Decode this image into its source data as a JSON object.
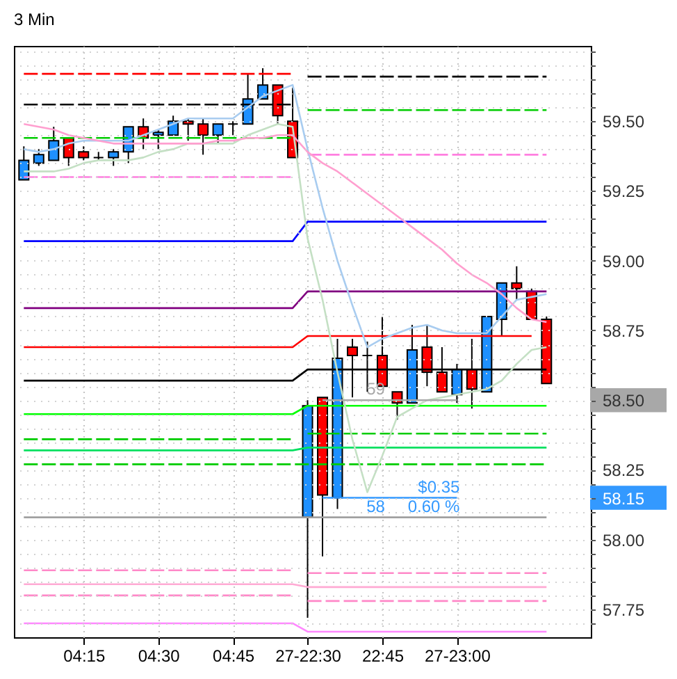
{
  "chart_data": {
    "type": "candlestick",
    "title": "3 Min",
    "categories": [
      null,
      null,
      null,
      null,
      "04:15",
      null,
      null,
      null,
      null,
      "04:30",
      null,
      null,
      null,
      null,
      "04:45",
      null,
      null,
      null,
      null,
      "27-22:30",
      null,
      null,
      null,
      null,
      "22:45",
      null,
      null,
      null,
      null,
      "27-23:00",
      null,
      null,
      null,
      null,
      null,
      null
    ],
    "ohlc": [
      [
        59.29,
        59.41,
        59.29,
        59.36
      ],
      [
        59.35,
        59.4,
        59.34,
        59.38
      ],
      [
        59.36,
        59.48,
        59.36,
        59.43
      ],
      [
        59.44,
        59.44,
        59.34,
        59.37
      ],
      [
        59.39,
        59.41,
        59.36,
        59.37
      ],
      [
        59.37,
        59.39,
        59.36,
        59.37
      ],
      [
        59.37,
        59.4,
        59.34,
        59.39
      ],
      [
        59.39,
        59.48,
        59.35,
        59.48
      ],
      [
        59.48,
        59.51,
        59.4,
        59.44
      ],
      [
        59.45,
        59.47,
        59.4,
        59.46
      ],
      [
        59.45,
        59.52,
        59.45,
        59.5
      ],
      [
        59.5,
        59.51,
        59.43,
        59.49
      ],
      [
        59.49,
        59.51,
        59.38,
        59.45
      ],
      [
        59.45,
        59.49,
        59.42,
        59.49
      ],
      [
        59.49,
        59.5,
        59.45,
        59.49
      ],
      [
        59.49,
        59.67,
        59.49,
        59.58
      ],
      [
        59.58,
        59.69,
        59.58,
        59.63
      ],
      [
        59.63,
        59.63,
        59.49,
        59.52
      ],
      [
        59.5,
        59.62,
        59.37,
        59.37
      ],
      [
        58.08,
        58.5,
        57.72,
        58.48
      ],
      [
        58.51,
        58.51,
        57.94,
        58.16
      ],
      [
        58.15,
        58.72,
        58.11,
        58.65
      ],
      [
        58.69,
        58.72,
        58.51,
        58.66
      ],
      [
        58.66,
        58.71,
        58.53,
        58.66
      ],
      [
        58.66,
        58.8,
        58.55,
        58.55
      ],
      [
        58.53,
        58.53,
        58.43,
        58.49
      ],
      [
        58.49,
        58.77,
        58.49,
        58.68
      ],
      [
        58.69,
        58.77,
        58.55,
        58.6
      ],
      [
        58.6,
        58.69,
        58.53,
        58.53
      ],
      [
        58.52,
        58.63,
        58.49,
        58.61
      ],
      [
        58.61,
        58.72,
        58.47,
        58.54
      ],
      [
        58.53,
        58.8,
        58.53,
        58.8
      ],
      [
        58.79,
        58.92,
        58.73,
        58.92
      ],
      [
        58.92,
        58.98,
        58.86,
        58.9
      ],
      [
        58.89,
        58.9,
        58.79,
        58.79
      ],
      [
        58.79,
        58.8,
        58.56,
        58.56
      ]
    ],
    "colors": [
      "#1e90ff",
      "#1e90ff",
      "#1e90ff",
      "#ff0000",
      "#ff0000",
      "#000000",
      "#1e90ff",
      "#1e90ff",
      "#ff0000",
      "#1e90ff",
      "#1e90ff",
      "#ff0000",
      "#ff0000",
      "#1e90ff",
      "#000000",
      "#1e90ff",
      "#1e90ff",
      "#ff0000",
      "#ff0000",
      "#1e90ff",
      "#ff0000",
      "#1e90ff",
      "#ff0000",
      "#000000",
      "#ff0000",
      "#ff0000",
      "#1e90ff",
      "#ff0000",
      "#ff0000",
      "#1e90ff",
      "#ff0000",
      "#1e90ff",
      "#1e90ff",
      "#ff0000",
      "#ff0000",
      "#ff0000"
    ],
    "series": [
      {
        "type": "line",
        "color": "#ff0000",
        "line_style": "dashed",
        "values": [
          59.67,
          59.67,
          59.67,
          59.67,
          59.67,
          59.67,
          59.67,
          59.67,
          59.67,
          59.67,
          59.67,
          59.67,
          59.67,
          59.67,
          59.67,
          59.67,
          59.67,
          59.67,
          59.67,
          null,
          null,
          null,
          null,
          null,
          null,
          null,
          null,
          null,
          null,
          null,
          null,
          null,
          null,
          null,
          null,
          null
        ]
      },
      {
        "type": "line",
        "color": "#000000",
        "line_style": "dashed",
        "values": [
          null,
          null,
          null,
          null,
          null,
          null,
          null,
          null,
          null,
          null,
          null,
          null,
          null,
          null,
          null,
          null,
          null,
          null,
          null,
          59.66,
          59.66,
          59.66,
          59.66,
          59.66,
          59.66,
          59.66,
          59.66,
          59.66,
          59.66,
          59.66,
          59.66,
          59.66,
          59.66,
          59.66,
          59.66,
          59.66
        ]
      },
      {
        "type": "line",
        "color": "#000000",
        "line_style": "dashed",
        "values": [
          59.56,
          59.56,
          59.56,
          59.56,
          59.56,
          59.56,
          59.56,
          59.56,
          59.56,
          59.56,
          59.56,
          59.56,
          59.56,
          59.56,
          59.56,
          59.56,
          59.56,
          59.56,
          59.56,
          null,
          null,
          null,
          null,
          null,
          null,
          null,
          null,
          null,
          null,
          null,
          null,
          null,
          null,
          null,
          null,
          null
        ]
      },
      {
        "type": "line",
        "color": "#00cc00",
        "line_style": "dashed",
        "values": [
          59.44,
          59.44,
          59.44,
          59.44,
          59.44,
          59.44,
          59.44,
          59.44,
          59.44,
          59.44,
          59.44,
          59.44,
          59.44,
          59.44,
          59.44,
          59.44,
          59.44,
          59.44,
          59.44,
          null,
          null,
          null,
          null,
          null,
          null,
          null,
          null,
          null,
          null,
          null,
          null,
          null,
          null,
          null,
          null,
          null
        ]
      },
      {
        "type": "line",
        "color": "#00cc00",
        "line_style": "dashed",
        "values": [
          null,
          null,
          null,
          null,
          null,
          null,
          null,
          null,
          null,
          null,
          null,
          null,
          null,
          null,
          null,
          null,
          null,
          null,
          null,
          59.54,
          59.54,
          59.54,
          59.54,
          59.54,
          59.54,
          59.54,
          59.54,
          59.54,
          59.54,
          59.54,
          59.54,
          59.54,
          59.54,
          59.54,
          59.54,
          59.54
        ]
      },
      {
        "type": "line",
        "color": "#ff7fe0",
        "line_style": "dashed",
        "values": [
          59.3,
          59.3,
          59.3,
          59.3,
          59.3,
          59.3,
          59.3,
          59.3,
          59.3,
          59.3,
          59.3,
          59.3,
          59.3,
          59.3,
          59.3,
          59.3,
          59.3,
          59.3,
          59.3,
          null,
          null,
          null,
          null,
          null,
          null,
          null,
          null,
          null,
          null,
          null,
          null,
          null,
          null,
          null,
          null,
          null
        ]
      },
      {
        "type": "line",
        "color": "#ff7fe0",
        "line_style": "dashed",
        "values": [
          null,
          null,
          null,
          null,
          null,
          null,
          null,
          null,
          null,
          null,
          null,
          null,
          null,
          null,
          null,
          null,
          null,
          null,
          null,
          59.38,
          59.38,
          59.38,
          59.38,
          59.38,
          59.38,
          59.38,
          59.38,
          59.38,
          59.38,
          59.38,
          59.38,
          59.38,
          59.38,
          59.38,
          59.38,
          59.38
        ]
      },
      {
        "type": "line",
        "color": "#0000ff",
        "line_style": "solid",
        "values": [
          59.07,
          59.07,
          59.07,
          59.07,
          59.07,
          59.07,
          59.07,
          59.07,
          59.07,
          59.07,
          59.07,
          59.07,
          59.07,
          59.07,
          59.07,
          59.07,
          59.07,
          59.07,
          59.07,
          59.14,
          59.14,
          59.14,
          59.14,
          59.14,
          59.14,
          59.14,
          59.14,
          59.14,
          59.14,
          59.14,
          59.14,
          59.14,
          59.14,
          59.14,
          59.14,
          59.14
        ]
      },
      {
        "type": "line",
        "color": "#800080",
        "line_style": "solid",
        "values": [
          58.83,
          58.83,
          58.83,
          58.83,
          58.83,
          58.83,
          58.83,
          58.83,
          58.83,
          58.83,
          58.83,
          58.83,
          58.83,
          58.83,
          58.83,
          58.83,
          58.83,
          58.83,
          58.83,
          58.89,
          58.89,
          58.89,
          58.89,
          58.89,
          58.89,
          58.89,
          58.89,
          58.89,
          58.89,
          58.89,
          58.89,
          58.89,
          58.89,
          58.89,
          58.89,
          58.89
        ]
      },
      {
        "type": "line",
        "color": "#ff0000",
        "line_style": "solid",
        "values": [
          58.69,
          58.69,
          58.69,
          58.69,
          58.69,
          58.69,
          58.69,
          58.69,
          58.69,
          58.69,
          58.69,
          58.69,
          58.69,
          58.69,
          58.69,
          58.69,
          58.69,
          58.69,
          58.69,
          58.73,
          58.73,
          58.73,
          58.73,
          58.73,
          58.73,
          58.73,
          58.73,
          58.73,
          58.73,
          58.73,
          58.73,
          58.73,
          58.73,
          58.73,
          58.73,
          null
        ]
      },
      {
        "type": "line",
        "color": "#000000",
        "line_style": "solid",
        "values": [
          58.57,
          58.57,
          58.57,
          58.57,
          58.57,
          58.57,
          58.57,
          58.57,
          58.57,
          58.57,
          58.57,
          58.57,
          58.57,
          58.57,
          58.57,
          58.57,
          58.57,
          58.57,
          58.57,
          58.61,
          58.61,
          58.61,
          58.61,
          58.61,
          58.61,
          58.61,
          58.61,
          58.61,
          58.61,
          58.61,
          58.61,
          58.61,
          58.61,
          58.61,
          58.61,
          58.61
        ]
      },
      {
        "type": "line",
        "color": "#00ff00",
        "line_style": "solid",
        "values": [
          58.45,
          58.45,
          58.45,
          58.45,
          58.45,
          58.45,
          58.45,
          58.45,
          58.45,
          58.45,
          58.45,
          58.45,
          58.45,
          58.45,
          58.45,
          58.45,
          58.45,
          58.45,
          58.45,
          58.48,
          58.48,
          58.48,
          58.48,
          58.48,
          58.48,
          58.48,
          58.48,
          58.48,
          58.48,
          58.48,
          58.48,
          58.48,
          58.48,
          58.48,
          58.48,
          58.48
        ]
      },
      {
        "type": "line",
        "color": "#00cc00",
        "line_style": "dashed",
        "values": [
          58.36,
          58.36,
          58.36,
          58.36,
          58.36,
          58.36,
          58.36,
          58.36,
          58.36,
          58.36,
          58.36,
          58.36,
          58.36,
          58.36,
          58.36,
          58.36,
          58.36,
          58.36,
          58.36,
          null,
          null,
          null,
          null,
          null,
          null,
          null,
          null,
          null,
          null,
          null,
          null,
          null,
          null,
          null,
          null,
          null
        ]
      },
      {
        "type": "line",
        "color": "#00cc00",
        "line_style": "dashed",
        "values": [
          null,
          null,
          null,
          null,
          null,
          null,
          null,
          null,
          null,
          null,
          null,
          null,
          null,
          null,
          null,
          null,
          null,
          null,
          null,
          58.38,
          58.38,
          58.38,
          58.38,
          58.38,
          58.38,
          58.38,
          58.38,
          58.38,
          58.38,
          58.38,
          58.38,
          58.38,
          58.38,
          58.38,
          58.38,
          58.38
        ]
      },
      {
        "type": "line",
        "color": "#00e060",
        "line_style": "solid",
        "values": [
          58.32,
          58.32,
          58.32,
          58.32,
          58.32,
          58.32,
          58.32,
          58.32,
          58.32,
          58.32,
          58.32,
          58.32,
          58.32,
          58.32,
          58.32,
          58.32,
          58.32,
          58.32,
          58.32,
          58.33,
          58.33,
          58.33,
          58.33,
          58.33,
          58.33,
          58.33,
          58.33,
          58.33,
          58.33,
          58.33,
          58.33,
          58.33,
          58.33,
          58.33,
          58.33,
          58.33
        ]
      },
      {
        "type": "line",
        "color": "#00cc00",
        "line_style": "dashed",
        "values": [
          58.27,
          58.27,
          58.27,
          58.27,
          58.27,
          58.27,
          58.27,
          58.27,
          58.27,
          58.27,
          58.27,
          58.27,
          58.27,
          58.27,
          58.27,
          58.27,
          58.27,
          58.27,
          58.27,
          58.27,
          58.27,
          58.27,
          58.27,
          58.27,
          58.27,
          58.27,
          58.27,
          58.27,
          58.27,
          58.27,
          58.27,
          58.27,
          58.27,
          58.27,
          58.27,
          58.27
        ]
      },
      {
        "type": "line",
        "color": "#a0a0a0",
        "line_style": "solid",
        "values": [
          58.08,
          58.08,
          58.08,
          58.08,
          58.08,
          58.08,
          58.08,
          58.08,
          58.08,
          58.08,
          58.08,
          58.08,
          58.08,
          58.08,
          58.08,
          58.08,
          58.08,
          58.08,
          58.08,
          58.08,
          58.08,
          58.08,
          58.08,
          58.08,
          58.08,
          58.08,
          58.08,
          58.08,
          58.08,
          58.08,
          58.08,
          58.08,
          58.08,
          58.08,
          58.08,
          58.08
        ]
      },
      {
        "type": "line",
        "color": "#ff88c8",
        "line_style": "dashed",
        "values": [
          57.89,
          57.89,
          57.89,
          57.89,
          57.89,
          57.89,
          57.89,
          57.89,
          57.89,
          57.89,
          57.89,
          57.89,
          57.89,
          57.89,
          57.89,
          57.89,
          57.89,
          57.89,
          57.89,
          null,
          null,
          null,
          null,
          null,
          null,
          null,
          null,
          null,
          null,
          null,
          null,
          null,
          null,
          null,
          null,
          null
        ]
      },
      {
        "type": "line",
        "color": "#ff88c8",
        "line_style": "dashed",
        "values": [
          null,
          null,
          null,
          null,
          null,
          null,
          null,
          null,
          null,
          null,
          null,
          null,
          null,
          null,
          null,
          null,
          null,
          null,
          null,
          57.88,
          57.88,
          57.88,
          57.88,
          57.88,
          57.88,
          57.88,
          57.88,
          57.88,
          57.88,
          57.88,
          57.88,
          57.88,
          57.88,
          57.88,
          57.88,
          57.88
        ]
      },
      {
        "type": "line",
        "color": "#ffaad4",
        "line_style": "solid",
        "values": [
          57.84,
          57.84,
          57.84,
          57.84,
          57.84,
          57.84,
          57.84,
          57.84,
          57.84,
          57.84,
          57.84,
          57.84,
          57.84,
          57.84,
          57.84,
          57.84,
          57.84,
          57.84,
          57.84,
          57.83,
          57.83,
          57.83,
          57.83,
          57.83,
          57.83,
          57.83,
          57.83,
          57.83,
          57.83,
          57.83,
          57.83,
          57.83,
          57.83,
          57.83,
          57.83,
          57.83
        ]
      },
      {
        "type": "line",
        "color": "#ff88c8",
        "line_style": "dashed",
        "values": [
          57.8,
          57.8,
          57.8,
          57.8,
          57.8,
          57.8,
          57.8,
          57.8,
          57.8,
          57.8,
          57.8,
          57.8,
          57.8,
          57.8,
          57.8,
          57.8,
          57.8,
          57.8,
          57.8,
          null,
          null,
          null,
          null,
          null,
          null,
          null,
          null,
          null,
          null,
          null,
          null,
          null,
          null,
          null,
          null,
          null
        ]
      },
      {
        "type": "line",
        "color": "#ff88c8",
        "line_style": "dashed",
        "values": [
          null,
          null,
          null,
          null,
          null,
          null,
          null,
          null,
          null,
          null,
          null,
          null,
          null,
          null,
          null,
          null,
          null,
          null,
          null,
          57.78,
          57.78,
          57.78,
          57.78,
          57.78,
          57.78,
          57.78,
          57.78,
          57.78,
          57.78,
          57.78,
          57.78,
          57.78,
          57.78,
          57.78,
          57.78,
          57.78
        ]
      },
      {
        "type": "line",
        "color": "#ff88ff",
        "line_style": "solid",
        "values": [
          57.7,
          57.7,
          57.7,
          57.7,
          57.7,
          57.7,
          57.7,
          57.7,
          57.7,
          57.7,
          57.7,
          57.7,
          57.7,
          57.7,
          57.7,
          57.7,
          57.7,
          57.7,
          57.7,
          57.67,
          57.67,
          57.67,
          57.67,
          57.67,
          57.67,
          57.67,
          57.67,
          57.67,
          57.67,
          57.67,
          57.67,
          57.67,
          57.67,
          57.67,
          57.67,
          57.67
        ]
      },
      {
        "type": "line",
        "color": "#a8ccf0",
        "line_style": "solid",
        "values": [
          59.4,
          59.39,
          59.4,
          59.42,
          59.43,
          59.43,
          59.43,
          59.43,
          59.45,
          59.47,
          59.49,
          59.51,
          59.51,
          59.51,
          59.51,
          59.55,
          59.59,
          59.61,
          59.63,
          59.4,
          59.19,
          59.0,
          58.84,
          58.69,
          58.72,
          58.74,
          58.76,
          58.77,
          58.75,
          58.74,
          58.74,
          58.74,
          58.8,
          58.86,
          58.87,
          58.88
        ]
      },
      {
        "type": "line",
        "color": "#c4e0c4",
        "line_style": "solid",
        "values": [
          59.32,
          59.32,
          59.32,
          59.33,
          59.35,
          59.36,
          59.36,
          59.36,
          59.37,
          59.39,
          59.4,
          59.42,
          59.42,
          59.42,
          59.42,
          59.45,
          59.47,
          59.49,
          59.48,
          59.08,
          58.86,
          58.6,
          58.36,
          58.17,
          58.3,
          58.44,
          58.47,
          58.5,
          58.51,
          58.52,
          58.53,
          58.54,
          58.57,
          58.63,
          58.68,
          58.69
        ]
      },
      {
        "type": "line",
        "color": "#ff9fcf",
        "line_style": "solid",
        "values": [
          59.49,
          59.48,
          59.47,
          59.45,
          59.44,
          59.43,
          59.42,
          59.42,
          59.42,
          59.42,
          59.42,
          59.42,
          59.42,
          59.43,
          59.43,
          59.44,
          59.44,
          59.45,
          59.45,
          59.39,
          59.35,
          59.32,
          59.28,
          59.24,
          59.2,
          59.16,
          59.12,
          59.08,
          59.04,
          58.99,
          58.95,
          58.92,
          58.88,
          58.83,
          58.79,
          58.78
        ]
      },
      {
        "type": "line",
        "color": "#a8a8a8",
        "line_style": "solid",
        "values": [
          null,
          null,
          null,
          null,
          null,
          null,
          null,
          null,
          null,
          null,
          null,
          null,
          null,
          null,
          null,
          null,
          null,
          null,
          null,
          null,
          58.5,
          58.5,
          58.5,
          58.5,
          58.5,
          58.5,
          58.5,
          58.5,
          58.5,
          58.5,
          null,
          null,
          null,
          null,
          null,
          null
        ]
      },
      {
        "type": "line",
        "color": "#3399ff",
        "line_style": "solid",
        "values": [
          null,
          null,
          null,
          null,
          null,
          null,
          null,
          null,
          null,
          null,
          null,
          null,
          null,
          null,
          null,
          null,
          null,
          null,
          null,
          null,
          58.15,
          58.15,
          58.15,
          58.15,
          58.15,
          58.15,
          58.15,
          58.15,
          58.15,
          58.15,
          null,
          null,
          null,
          null,
          null,
          null
        ]
      }
    ],
    "annotations": [
      {
        "text": "59",
        "x": "22:45",
        "y": 58.5
      },
      {
        "text": "58",
        "x": "22:45",
        "y": 58.15
      },
      {
        "text": "$0.35",
        "x": "27-23:00",
        "y": 58.15
      },
      {
        "text": "0.60 %",
        "x": "27-23:00",
        "y": 58.15
      }
    ],
    "ylim": [
      57.65,
      59.77
    ],
    "yticks": [
      {
        "value": 57.7,
        "label": null
      },
      {
        "value": 57.75,
        "label": "57.75"
      },
      {
        "value": 57.8,
        "label": null
      },
      {
        "value": 57.85,
        "label": null
      },
      {
        "value": 57.9,
        "label": null
      },
      {
        "value": 57.95,
        "label": null
      },
      {
        "value": 58.0,
        "label": "58.00"
      },
      {
        "value": 58.05,
        "label": null
      },
      {
        "value": 58.1,
        "label": null
      },
      {
        "value": 58.15,
        "label": "58.15"
      },
      {
        "value": 58.2,
        "label": null
      },
      {
        "value": 58.25,
        "label": "58.25"
      },
      {
        "value": 58.3,
        "label": null
      },
      {
        "value": 58.35,
        "label": null
      },
      {
        "value": 58.4,
        "label": null
      },
      {
        "value": 58.45,
        "label": null
      },
      {
        "value": 58.5,
        "label": "58.50"
      },
      {
        "value": 58.55,
        "label": null
      },
      {
        "value": 58.6,
        "label": null
      },
      {
        "value": 58.65,
        "label": null
      },
      {
        "value": 58.7,
        "label": null
      },
      {
        "value": 58.75,
        "label": "58.75"
      },
      {
        "value": 58.8,
        "label": null
      },
      {
        "value": 58.85,
        "label": null
      },
      {
        "value": 58.9,
        "label": null
      },
      {
        "value": 58.95,
        "label": null
      },
      {
        "value": 59.0,
        "label": "59.00"
      },
      {
        "value": 59.05,
        "label": null
      },
      {
        "value": 59.1,
        "label": null
      },
      {
        "value": 59.15,
        "label": null
      },
      {
        "value": 59.2,
        "label": null
      },
      {
        "value": 59.25,
        "label": "59.25"
      },
      {
        "value": 59.3,
        "label": null
      },
      {
        "value": 59.35,
        "label": null
      },
      {
        "value": 59.4,
        "label": null
      },
      {
        "value": 59.45,
        "label": null
      },
      {
        "value": 59.5,
        "label": "59.50"
      },
      {
        "value": 59.55,
        "label": null
      },
      {
        "value": 59.6,
        "label": null
      },
      {
        "value": 59.65,
        "label": null
      },
      {
        "value": 59.7,
        "label": null
      },
      {
        "value": 59.75,
        "label": null
      }
    ],
    "grid": true
  }
}
